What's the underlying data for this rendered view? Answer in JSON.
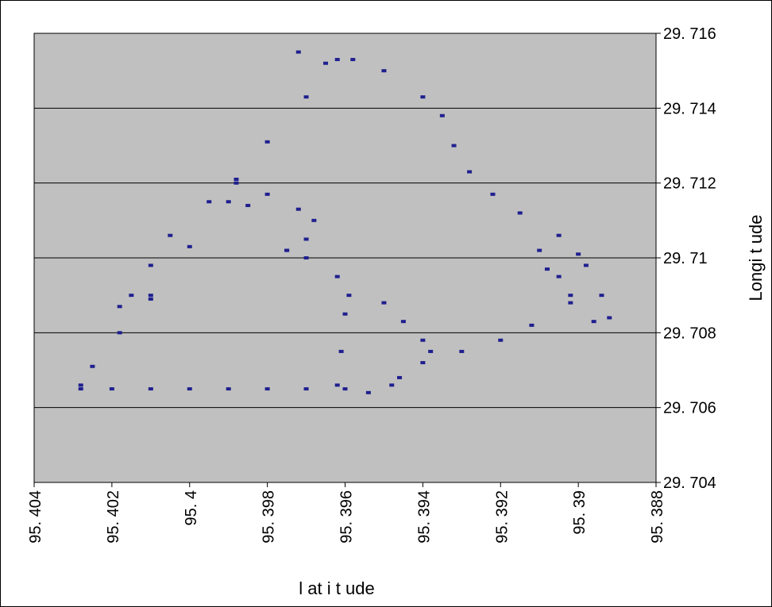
{
  "chart_data": {
    "type": "scatter",
    "xlabel": "l at i t ude",
    "ylabel": "Longi t ude",
    "xlim": [
      95.404,
      95.388
    ],
    "ylim": [
      29.704,
      29.716
    ],
    "x_reversed": true,
    "grid": "horizontal",
    "background": "#c0c0c0",
    "series_color": "#1f1f8f",
    "x_tick_labels": [
      "95. 404",
      "95. 402",
      "95. 4",
      "95. 398",
      "95. 396",
      "95. 394",
      "95. 392",
      "95. 39",
      "95. 388"
    ],
    "x_tick_values": [
      95.404,
      95.402,
      95.4,
      95.398,
      95.396,
      95.394,
      95.392,
      95.39,
      95.388
    ],
    "y_tick_labels": [
      "29. 716",
      "29. 714",
      "29. 712",
      "29. 71",
      "29. 708",
      "29. 706",
      "29. 704"
    ],
    "y_tick_values": [
      29.716,
      29.714,
      29.712,
      29.71,
      29.708,
      29.706,
      29.704
    ],
    "series": [
      {
        "points": [
          [
            95.4028,
            29.7066
          ],
          [
            95.4025,
            29.7071
          ],
          [
            95.4018,
            29.708
          ],
          [
            95.401,
            29.709
          ],
          [
            95.4,
            29.7103
          ],
          [
            95.399,
            29.7115
          ],
          [
            95.3988,
            29.7121
          ],
          [
            95.398,
            29.7131
          ],
          [
            95.397,
            29.7143
          ],
          [
            95.3962,
            29.7153
          ],
          [
            95.3972,
            29.7155
          ],
          [
            95.3965,
            29.7152
          ],
          [
            95.3958,
            29.7153
          ],
          [
            95.395,
            29.715
          ],
          [
            95.394,
            29.7143
          ],
          [
            95.3935,
            29.7138
          ],
          [
            95.3932,
            29.713
          ],
          [
            95.3928,
            29.7123
          ],
          [
            95.3922,
            29.7117
          ],
          [
            95.3915,
            29.7112
          ],
          [
            95.3905,
            29.7106
          ],
          [
            95.39,
            29.7101
          ],
          [
            95.3898,
            29.7098
          ],
          [
            95.3894,
            29.709
          ],
          [
            95.3892,
            29.7084
          ],
          [
            95.3896,
            29.7083
          ],
          [
            95.3902,
            29.709
          ],
          [
            95.3908,
            29.7097
          ],
          [
            95.391,
            29.7102
          ],
          [
            95.3905,
            29.7095
          ],
          [
            95.3902,
            29.7088
          ],
          [
            95.3912,
            29.7082
          ],
          [
            95.392,
            29.7078
          ],
          [
            95.393,
            29.7075
          ],
          [
            95.394,
            29.7072
          ],
          [
            95.3946,
            29.7068
          ],
          [
            95.3948,
            29.7066
          ],
          [
            95.3954,
            29.7064
          ],
          [
            95.396,
            29.7065
          ],
          [
            95.397,
            29.7065
          ],
          [
            95.398,
            29.7065
          ],
          [
            95.399,
            29.7065
          ],
          [
            95.4,
            29.7065
          ],
          [
            95.401,
            29.7065
          ],
          [
            95.402,
            29.7065
          ],
          [
            95.4028,
            29.7065
          ],
          [
            95.3962,
            29.7066
          ],
          [
            95.3961,
            29.7075
          ],
          [
            95.396,
            29.7085
          ],
          [
            95.3959,
            29.709
          ],
          [
            95.3975,
            29.7102
          ],
          [
            95.397,
            29.71
          ],
          [
            95.3962,
            29.7095
          ],
          [
            95.395,
            29.7088
          ],
          [
            95.3945,
            29.7083
          ],
          [
            95.394,
            29.7078
          ],
          [
            95.3938,
            29.7075
          ],
          [
            95.3988,
            29.712
          ],
          [
            95.398,
            29.7117
          ],
          [
            95.3972,
            29.7113
          ],
          [
            95.3968,
            29.711
          ],
          [
            95.397,
            29.7105
          ],
          [
            95.3975,
            29.7102
          ],
          [
            95.3995,
            29.7115
          ],
          [
            95.401,
            29.7098
          ],
          [
            95.4015,
            29.709
          ],
          [
            95.4018,
            29.7087
          ],
          [
            95.4005,
            29.7106
          ],
          [
            95.3985,
            29.7114
          ],
          [
            95.401,
            29.7089
          ]
        ]
      }
    ]
  }
}
